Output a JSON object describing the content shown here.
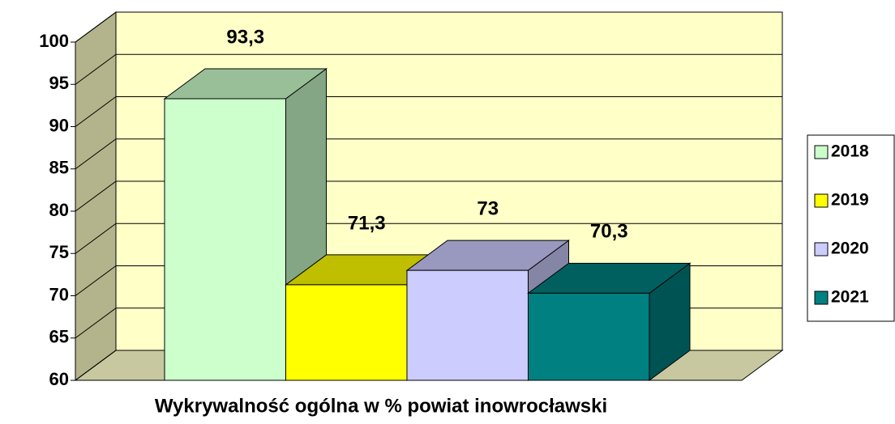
{
  "chart_data": {
    "type": "bar3d",
    "categories": [
      "Wykrywalność ogólna w % powiat inowrocławski"
    ],
    "series": [
      {
        "name": "2018",
        "color": "#ccffcc",
        "values": [
          93.3
        ],
        "value_labels": [
          "93,3"
        ]
      },
      {
        "name": "2019",
        "color": "#ffff00",
        "values": [
          71.3
        ],
        "value_labels": [
          "71,3"
        ]
      },
      {
        "name": "2020",
        "color": "#ccccff",
        "values": [
          73
        ],
        "value_labels": [
          "73"
        ]
      },
      {
        "name": "2021",
        "color": "#008080",
        "values": [
          70.3
        ],
        "value_labels": [
          "70,3"
        ]
      }
    ],
    "ylim": [
      60,
      100
    ],
    "yticks": [
      60,
      65,
      70,
      75,
      80,
      85,
      90,
      95,
      100
    ],
    "grid": true,
    "legend": "right"
  }
}
